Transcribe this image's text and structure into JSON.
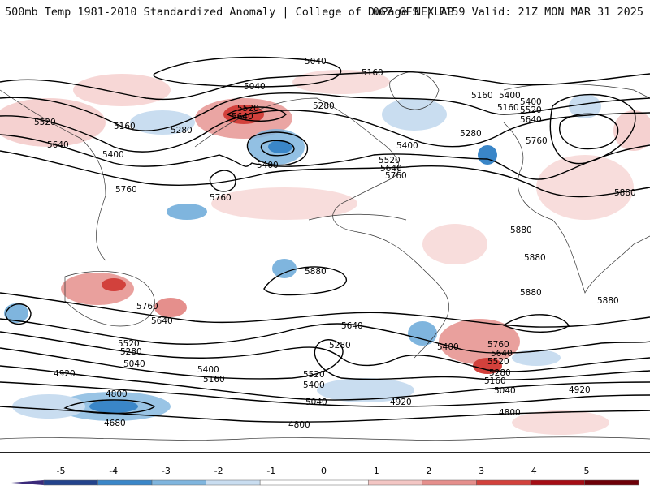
{
  "header": {
    "left_title": "500mb Temp 1981-2010 Standardized Anomaly | College of DuPage NEXLAB",
    "right_title": "06Z GFS | F159 Valid: 21Z MON MAR 31 2025"
  },
  "contour_labels": [
    "5040",
    "5040",
    "5160",
    "5160",
    "5280",
    "5520",
    "5640",
    "5520",
    "5640",
    "5160",
    "5280",
    "5400",
    "5400",
    "5400",
    "5520",
    "5640",
    "5760",
    "5400",
    "5160",
    "5280",
    "5760",
    "5400",
    "5520",
    "5640",
    "5760",
    "5880",
    "5880",
    "5880",
    "5880",
    "5880",
    "5880",
    "5760",
    "5640",
    "5760",
    "5640",
    "5520",
    "5280",
    "5040",
    "4920",
    "4800",
    "4680",
    "5400",
    "5160",
    "5520",
    "5400",
    "5280",
    "5040",
    "4920",
    "4800",
    "5400",
    "5760",
    "5640",
    "5520",
    "5280",
    "5160",
    "5040",
    "4920",
    "4800"
  ],
  "colorbar": {
    "ticks": [
      "-5",
      "-4",
      "-3",
      "-2",
      "-1",
      "0",
      "1",
      "2",
      "3",
      "4",
      "5"
    ],
    "colors": {
      "n5": "#3b2a7a",
      "n4": "#23438c",
      "n3": "#3a86c8",
      "n2": "#7fb5de",
      "n1": "#c9ddf0",
      "zero": "#ffffff",
      "p1": "#f3c6c4",
      "p2": "#e58f8c",
      "p3": "#d2413c",
      "p4": "#a50d15",
      "p5": "#6e0008",
      "over": "#f2b61c"
    }
  }
}
